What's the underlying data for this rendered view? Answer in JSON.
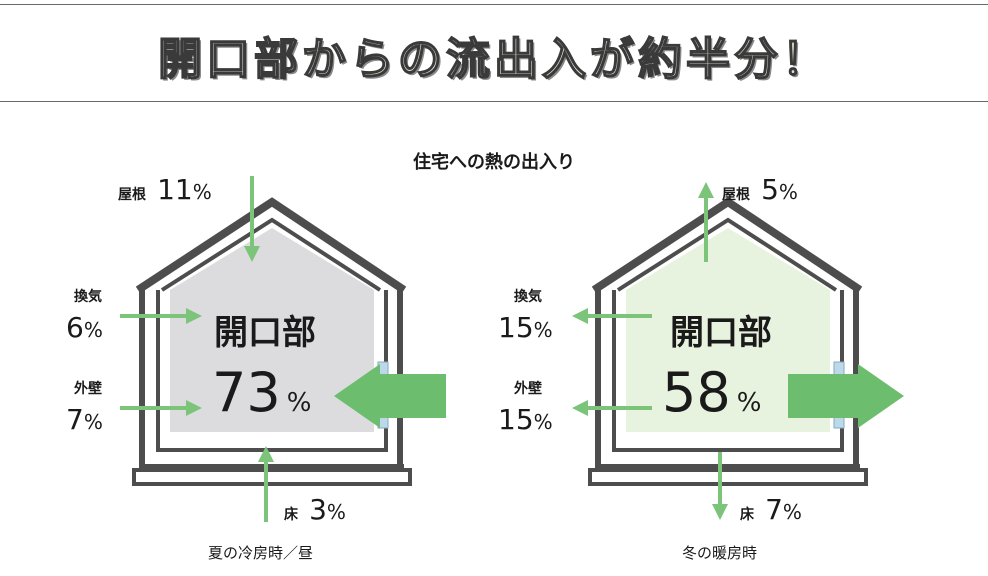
{
  "header": {
    "title": "開口部からの流出入が約半分！"
  },
  "subtitle": "住宅への熱の出入り",
  "colors": {
    "arrow_green": "#7cc47a",
    "big_arrow_green": "#6cbd6e",
    "summer_fill": "#dcdcdf",
    "winter_fill": "#e8f3df",
    "wall_gray": "#4d4d4d",
    "window_blue": "#bcd9ea"
  },
  "summer": {
    "roof": {
      "label": "屋根",
      "value": "11",
      "unit": "%"
    },
    "ventilation": {
      "label": "換気",
      "value": "6",
      "unit": "%"
    },
    "outer_wall": {
      "label": "外壁",
      "value": "7",
      "unit": "%"
    },
    "floor": {
      "label": "床",
      "value": "3",
      "unit": "%"
    },
    "opening": {
      "label": "開口部",
      "value": "73",
      "unit": "%"
    },
    "caption": "夏の冷房時／昼"
  },
  "winter": {
    "roof": {
      "label": "屋根",
      "value": "5",
      "unit": "%"
    },
    "ventilation": {
      "label": "換気",
      "value": "15",
      "unit": "%"
    },
    "outer_wall": {
      "label": "外壁",
      "value": "15",
      "unit": "%"
    },
    "floor": {
      "label": "床",
      "value": "7",
      "unit": "%"
    },
    "opening": {
      "label": "開口部",
      "value": "58",
      "unit": "%"
    },
    "caption": "冬の暖房時"
  }
}
